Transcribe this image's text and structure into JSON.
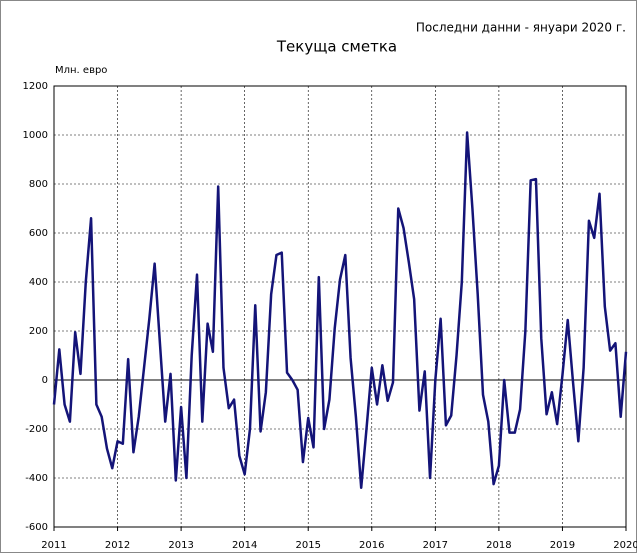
{
  "chart_data": {
    "type": "line",
    "title": "Текуща сметка",
    "annotation": "Последни данни - януари 2020 г.",
    "y_label": "Млн. евро",
    "categories": [
      "2011",
      null,
      null,
      null,
      null,
      null,
      null,
      null,
      null,
      null,
      null,
      null,
      "2012",
      null,
      null,
      null,
      null,
      null,
      null,
      null,
      null,
      null,
      null,
      null,
      "2013",
      null,
      null,
      null,
      null,
      null,
      null,
      null,
      null,
      null,
      null,
      null,
      "2014",
      null,
      null,
      null,
      null,
      null,
      null,
      null,
      null,
      null,
      null,
      null,
      "2015",
      null,
      null,
      null,
      null,
      null,
      null,
      null,
      null,
      null,
      null,
      null,
      "2016",
      null,
      null,
      null,
      null,
      null,
      null,
      null,
      null,
      null,
      null,
      null,
      "2017",
      null,
      null,
      null,
      null,
      null,
      null,
      null,
      null,
      null,
      null,
      null,
      "2018",
      null,
      null,
      null,
      null,
      null,
      null,
      null,
      null,
      null,
      null,
      null,
      "2019",
      null,
      null,
      null,
      null,
      null,
      null,
      null,
      null,
      null,
      null,
      null,
      "2020"
    ],
    "values": [
      -100,
      125,
      -100,
      -170,
      195,
      25,
      400,
      660,
      -100,
      -150,
      -280,
      -360,
      -250,
      -260,
      85,
      -295,
      -150,
      50,
      250,
      475,
      150,
      -170,
      25,
      -410,
      -110,
      -400,
      100,
      430,
      -170,
      230,
      115,
      790,
      50,
      -115,
      -80,
      -310,
      -385,
      -200,
      305,
      -210,
      -50,
      350,
      510,
      520,
      30,
      0,
      -40,
      -335,
      -155,
      -275,
      420,
      -200,
      -80,
      210,
      410,
      510,
      90,
      -150,
      -440,
      -200,
      50,
      -100,
      60,
      -85,
      -10,
      700,
      620,
      480,
      330,
      -125,
      35,
      -400,
      0,
      250,
      -185,
      -145,
      100,
      400,
      1010,
      700,
      350,
      -60,
      -170,
      -425,
      -350,
      0,
      -215,
      -215,
      -120,
      200,
      815,
      820,
      170,
      -140,
      -50,
      -180,
      20,
      245,
      -10,
      -250,
      50,
      650,
      580,
      760,
      300,
      120,
      150,
      -150,
      115
    ],
    "color": "#141478",
    "ylim": [
      -600,
      1200
    ],
    "yticks": [
      -600,
      -400,
      -200,
      0,
      200,
      400,
      600,
      800,
      1000,
      1200
    ],
    "grid": true
  }
}
